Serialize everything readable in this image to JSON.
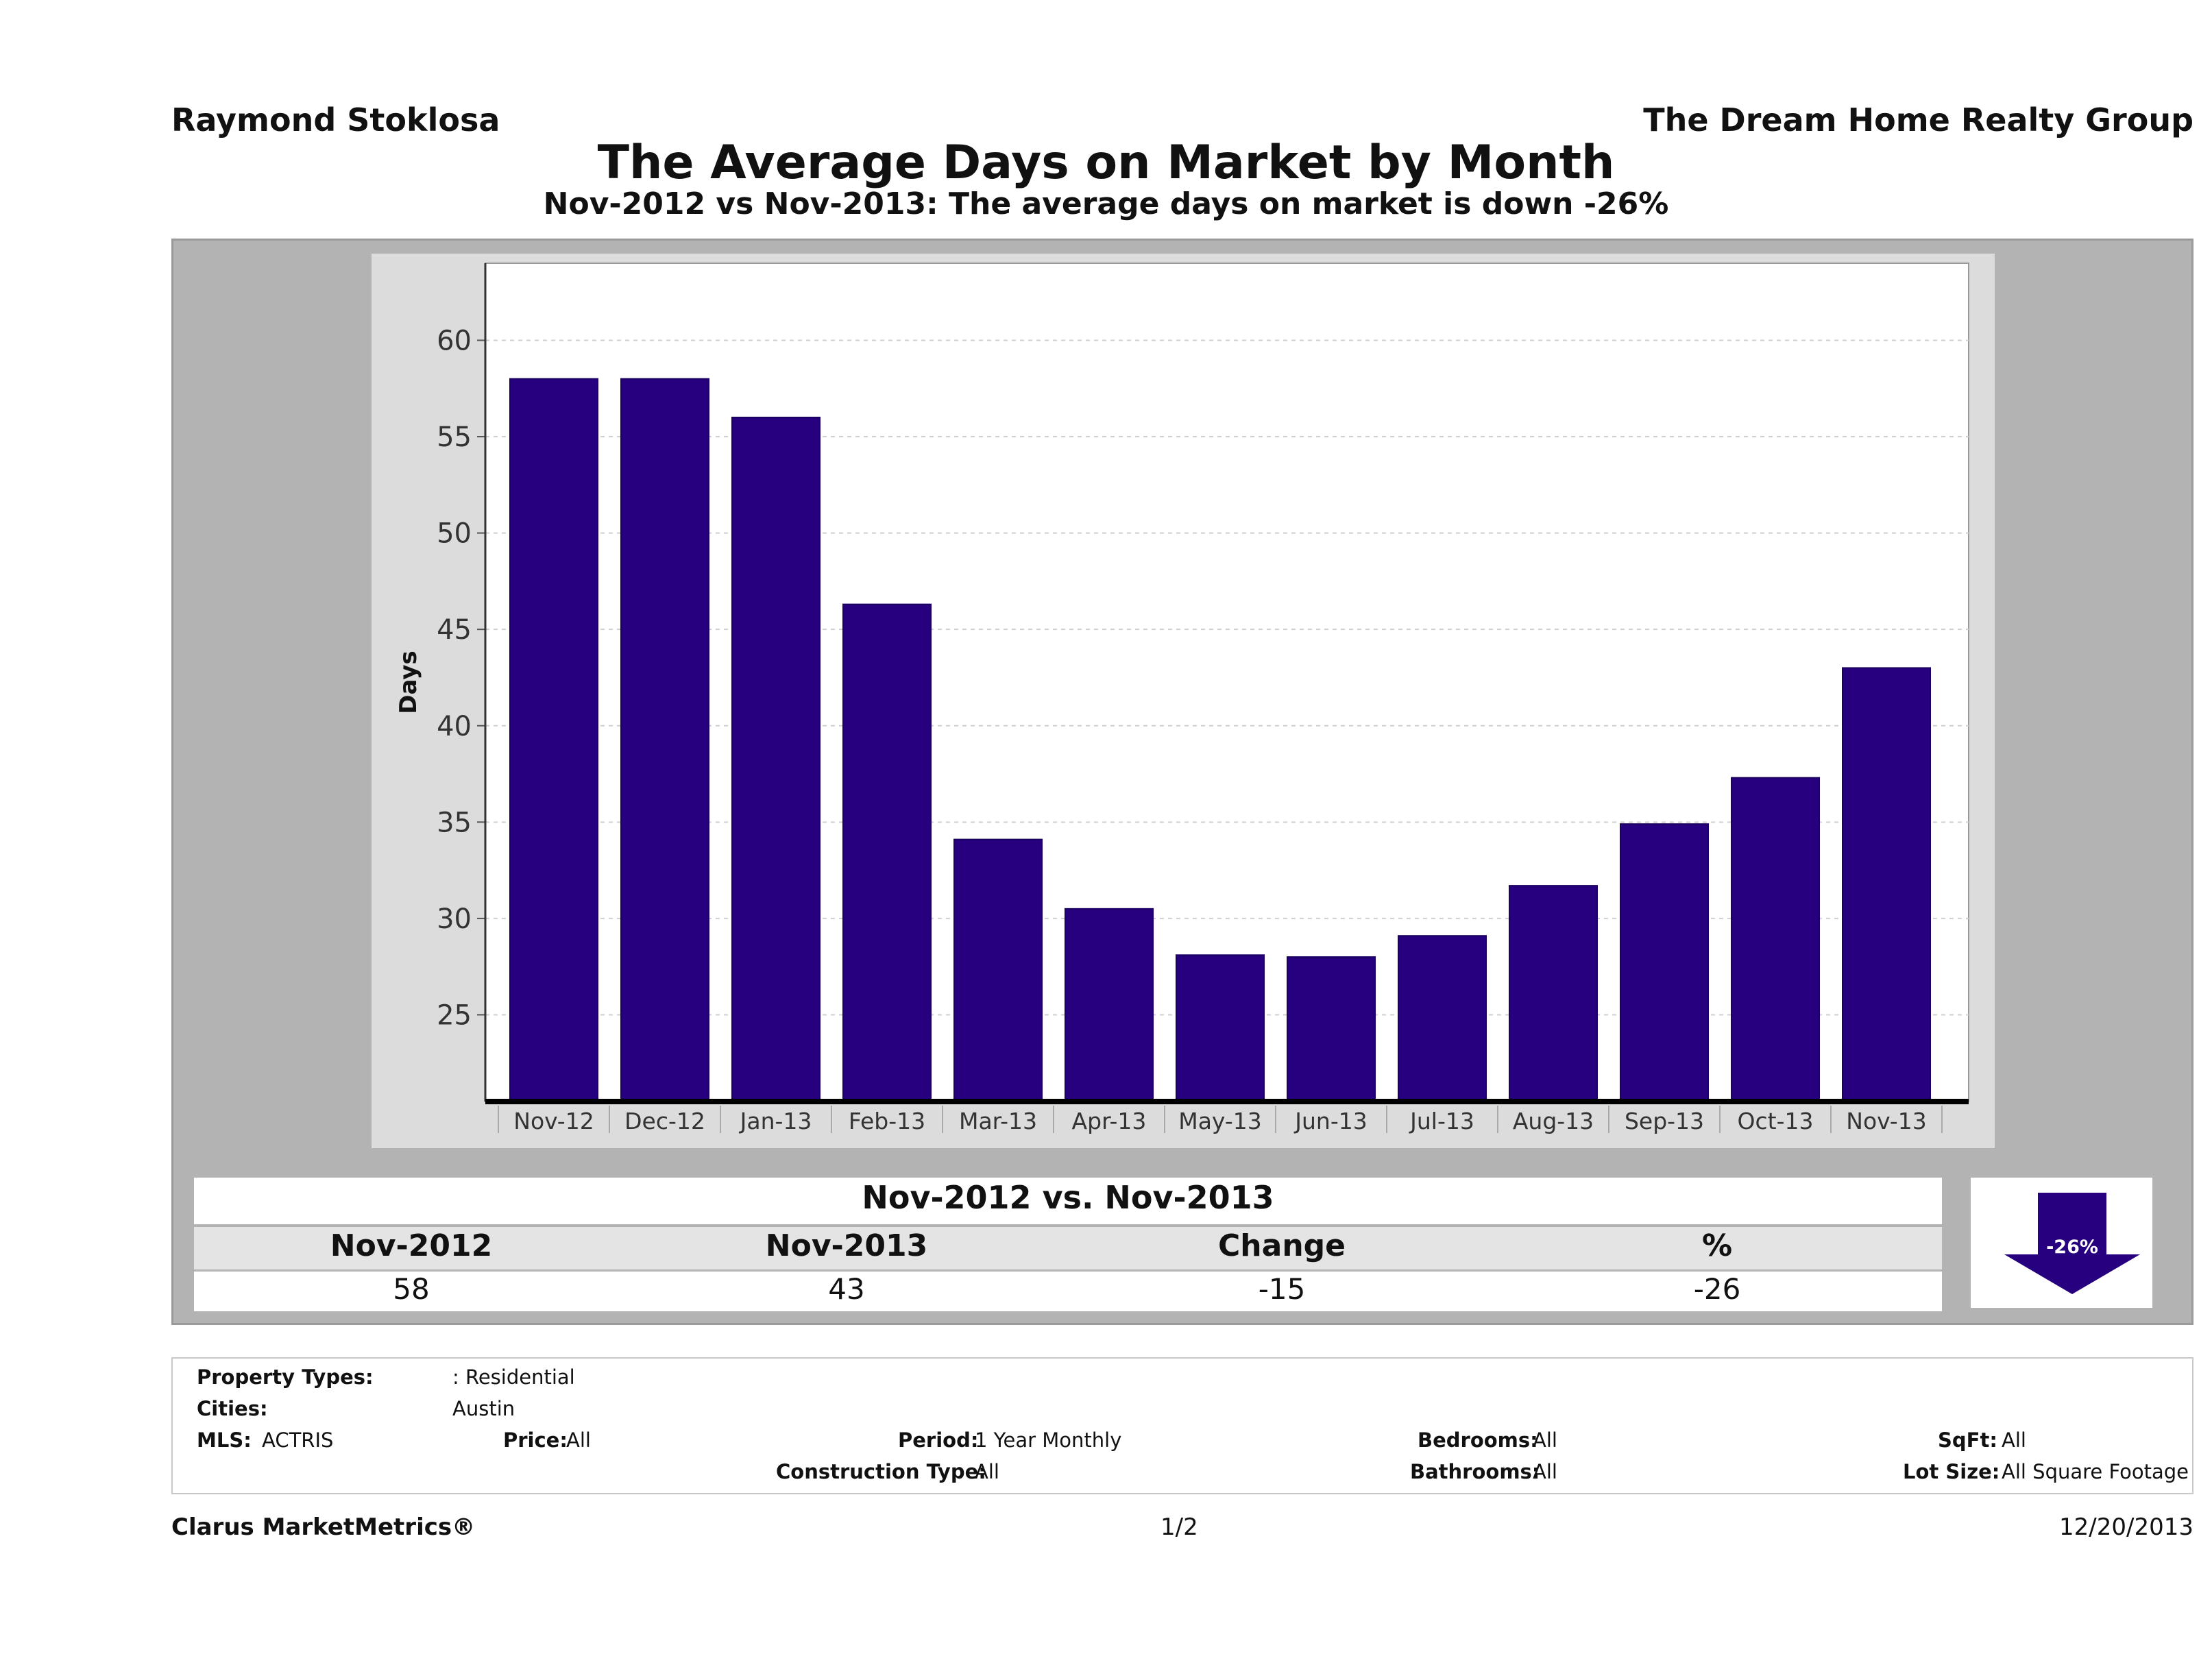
{
  "header": {
    "agent_name": "Raymond Stoklosa",
    "company_name": "The Dream Home Realty Group",
    "title": "The Average Days on Market by Month",
    "subtitle": "Nov-2012 vs Nov-2013: The average days on market is down -26%"
  },
  "chart_data": {
    "type": "bar",
    "ylabel": "Days",
    "xlabel": "",
    "categories": [
      "Nov-12",
      "Dec-12",
      "Jan-13",
      "Feb-13",
      "Mar-13",
      "Apr-13",
      "May-13",
      "Jun-13",
      "Jul-13",
      "Aug-13",
      "Sep-13",
      "Oct-13",
      "Nov-13"
    ],
    "values": [
      58,
      58,
      56,
      46.3,
      34.1,
      30.5,
      28.1,
      28.0,
      29.1,
      31.7,
      34.9,
      37.3,
      43
    ],
    "ylim": [
      20.5,
      64
    ],
    "yticks": [
      25,
      30,
      35,
      40,
      45,
      50,
      55,
      60
    ],
    "grid": true,
    "bar_color": "#26007f"
  },
  "summary": {
    "title": "Nov-2012 vs. Nov-2013",
    "columns": [
      "Nov-2012",
      "Nov-2013",
      "Change",
      "%"
    ],
    "values": [
      "58",
      "43",
      "-15",
      "-26"
    ],
    "arrow_label": "-26%",
    "arrow_color": "#26007f"
  },
  "filters": {
    "property_types_label": "Property Types:",
    "property_types_value": ": Residential",
    "cities_label": "Cities:",
    "cities_value": "Austin",
    "mls_label": "MLS:",
    "mls_value": "ACTRIS",
    "price_label": "Price:",
    "price_value": "All",
    "period_label": "Period:",
    "period_value": "1 Year Monthly",
    "construction_label": "Construction Type:",
    "construction_value": "All",
    "bedrooms_label": "Bedrooms:",
    "bedrooms_value": "All",
    "bathrooms_label": "Bathrooms:",
    "bathrooms_value": "All",
    "sqft_label": "SqFt:",
    "sqft_value": "All",
    "lot_label": "Lot Size:",
    "lot_value": "All Square Footage"
  },
  "footer": {
    "brand": "Clarus MarketMetrics®",
    "page": "1/2",
    "date": "12/20/2013"
  }
}
